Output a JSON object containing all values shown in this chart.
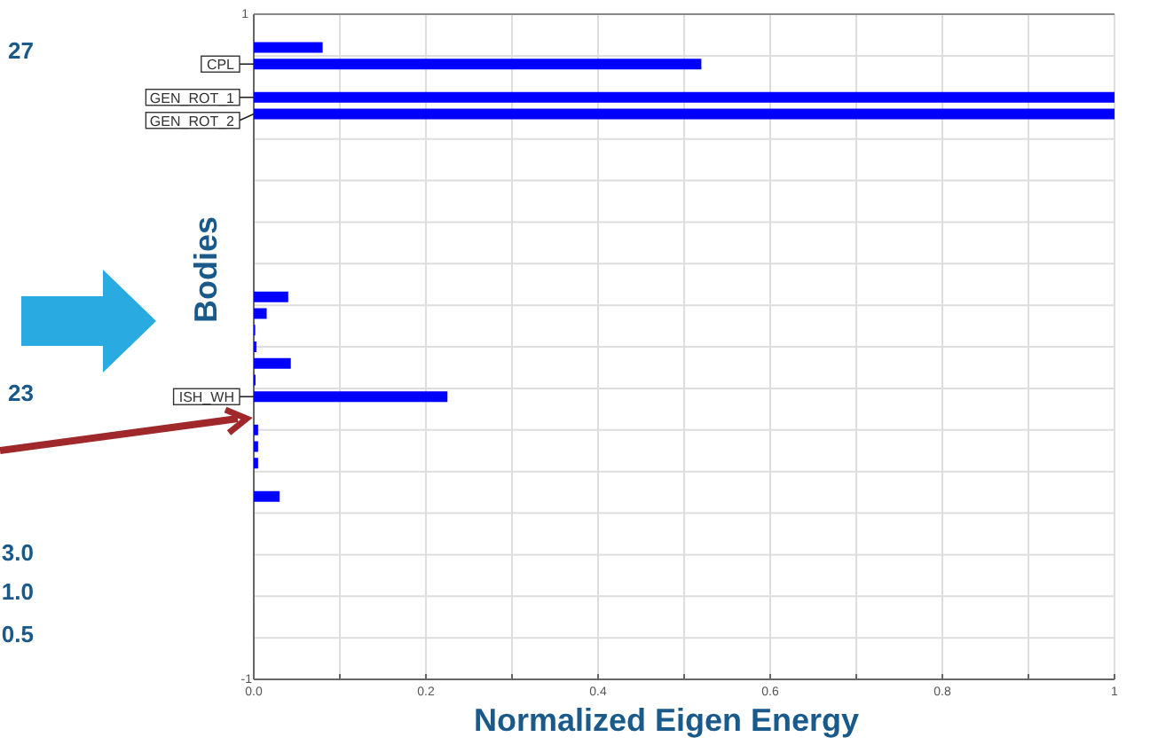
{
  "chart_data": {
    "type": "bar",
    "orientation": "horizontal",
    "xlabel": "Normalized Eigen Energy",
    "ylabel": "Bodies",
    "categories": [
      null,
      null,
      "CPL",
      null,
      "GEN_ROT_1",
      "GEN_ROT_2",
      null,
      null,
      null,
      null,
      null,
      null,
      null,
      null,
      null,
      null,
      null,
      null,
      null,
      null,
      null,
      null,
      "ISH_WH",
      null,
      null,
      null,
      null,
      null,
      null,
      null,
      null,
      null,
      null,
      null,
      null,
      null,
      null,
      null,
      null,
      null
    ],
    "values": [
      null,
      0.08,
      0.52,
      null,
      1.0,
      1.0,
      null,
      null,
      null,
      null,
      null,
      null,
      null,
      null,
      null,
      null,
      0.04,
      0.015,
      0.001,
      0.003,
      0.043,
      0.002,
      0.225,
      null,
      0.005,
      0.005,
      0.005,
      null,
      0.03,
      null,
      null,
      null,
      null,
      null,
      null,
      null,
      null,
      null,
      null,
      null
    ],
    "color": "#0000ff",
    "xlim": [
      0,
      1
    ],
    "xticks": [
      {
        "value": 0,
        "label": "0.0"
      },
      {
        "value": 0.1,
        "label": null
      },
      {
        "value": 0.2,
        "label": "0.2"
      },
      {
        "value": 0.3,
        "label": null
      },
      {
        "value": 0.4,
        "label": "0.4"
      },
      {
        "value": 0.5,
        "label": null
      },
      {
        "value": 0.6,
        "label": "0.6"
      },
      {
        "value": 0.7,
        "label": null
      },
      {
        "value": 0.8,
        "label": "0.8"
      },
      {
        "value": 0.9,
        "label": null
      },
      1
    ],
    "grid": true,
    "annotations": [
      "1",
      "-1",
      "27",
      "23",
      "3.0",
      "1.0",
      "0.5"
    ]
  }
}
